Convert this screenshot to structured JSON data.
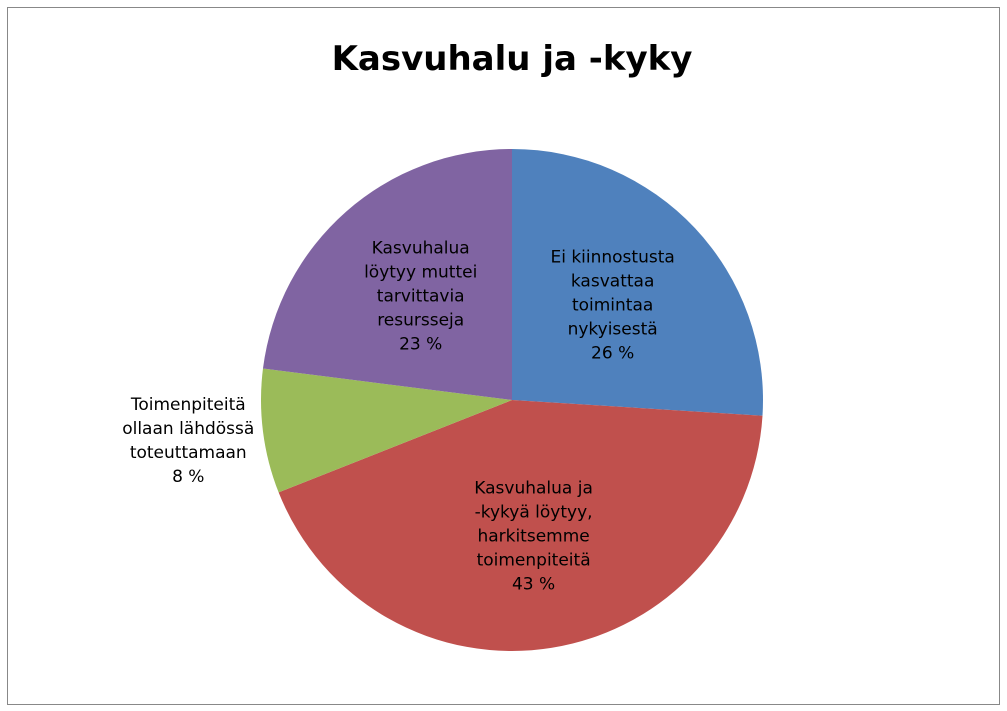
{
  "chart_data": {
    "type": "pie",
    "title": "Kasvuhalu ja -kyky",
    "categories": [
      "Ei kiinnostusta kasvattaa toimintaa nykyisestä",
      "Kasvuhalua ja -kykyä löytyy, harkitsemme toimenpiteitä",
      "Toimenpiteitä ollaan lähdössä toteuttamaan",
      "Kasvuhalua löytyy muttei tarvittavia resursseja"
    ],
    "values": [
      26,
      43,
      8,
      23
    ],
    "value_labels": [
      "26 %",
      "43 %",
      "8 %",
      "23 %"
    ],
    "colors": [
      "#4f81bd",
      "#c0504d",
      "#9bbb59",
      "#8064a2"
    ]
  }
}
